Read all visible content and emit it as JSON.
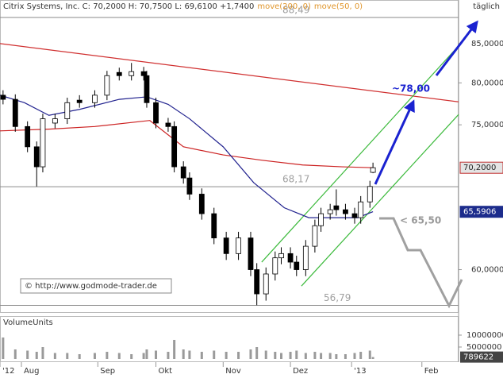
{
  "chart_data": {
    "type": "candlestick",
    "title": "Citrix Systems, Inc. C: 70,2000 H: 70,7500 L: 69,6100 +1,7400",
    "indicator_labels": [
      "move(200, 0)",
      "move(50, 0)"
    ],
    "indicator_label_color": "#e0962c",
    "period": "täglich",
    "copyright": "© http://www.godmode-trader.de",
    "log_scale": true,
    "xlim": [
      0,
      150
    ],
    "xticks": [
      {
        "value": 0,
        "label": "'12"
      },
      {
        "value": 7,
        "label": "Aug"
      },
      {
        "value": 32,
        "label": "Sep"
      },
      {
        "value": 51,
        "label": "Okt"
      },
      {
        "value": 73,
        "label": "Nov"
      },
      {
        "value": 95,
        "label": "Dez"
      },
      {
        "value": 115,
        "label": "'13"
      },
      {
        "value": 138,
        "label": "Feb"
      }
    ],
    "ylim": [
      56.2,
      90.9
    ],
    "yticks": [
      {
        "value": 60,
        "label": "60,0000"
      },
      {
        "value": 75,
        "label": "75,0000"
      },
      {
        "value": 80,
        "label": "80,0000"
      },
      {
        "value": 85,
        "label": "85,0000"
      }
    ],
    "x": [
      1,
      5,
      9,
      12,
      14,
      18,
      22,
      26,
      31,
      35,
      39,
      43,
      47,
      48,
      51,
      55,
      57,
      60,
      62,
      66,
      70,
      74,
      78,
      82,
      84,
      87,
      90,
      92,
      95,
      97,
      100,
      103,
      105,
      108,
      110,
      113,
      116,
      118,
      121,
      122
    ],
    "open": [
      78.5,
      78.0,
      74.8,
      72.5,
      70.3,
      75.2,
      75.7,
      77.9,
      77.6,
      78.5,
      81.3,
      80.9,
      81.4,
      80.9,
      77.6,
      75.2,
      74.8,
      70.3,
      69.1,
      67.4,
      65.4,
      63.0,
      61.5,
      63.0,
      60.0,
      57.8,
      59.6,
      61.1,
      61.5,
      60.7,
      60.0,
      62.2,
      64.2,
      65.4,
      66.2,
      65.8,
      65.4,
      65.0,
      66.6,
      69.7
    ],
    "high": [
      79.1,
      78.6,
      75.4,
      73.1,
      76.3,
      76.3,
      78.2,
      78.5,
      79.1,
      81.5,
      81.9,
      82.5,
      82.0,
      81.5,
      78.2,
      75.8,
      75.4,
      70.9,
      69.7,
      68.0,
      66.0,
      63.6,
      63.6,
      63.6,
      60.6,
      60.2,
      61.7,
      62.1,
      62.1,
      61.3,
      62.8,
      64.8,
      66.0,
      66.4,
      67.9,
      66.4,
      66.0,
      67.2,
      68.8,
      70.75
    ],
    "low": [
      77.4,
      74.2,
      71.9,
      68.2,
      69.7,
      74.6,
      75.1,
      77.0,
      77.0,
      77.9,
      80.3,
      80.3,
      80.3,
      77.0,
      74.6,
      74.2,
      69.7,
      68.5,
      66.8,
      64.8,
      62.4,
      60.9,
      60.9,
      59.4,
      56.8,
      57.2,
      59.0,
      60.5,
      60.1,
      59.4,
      59.4,
      61.6,
      63.6,
      64.8,
      65.2,
      64.8,
      64.4,
      64.4,
      66.0,
      69.61
    ],
    "close": [
      78.0,
      74.8,
      72.5,
      70.3,
      75.7,
      75.7,
      77.6,
      77.6,
      78.5,
      80.9,
      80.9,
      81.4,
      80.9,
      77.6,
      75.2,
      74.8,
      70.3,
      69.1,
      67.4,
      65.4,
      63.0,
      61.5,
      63.0,
      60.0,
      57.8,
      59.6,
      61.1,
      61.5,
      60.7,
      60.0,
      62.2,
      64.2,
      65.4,
      65.8,
      65.8,
      65.4,
      65.0,
      66.6,
      68.2,
      70.2
    ],
    "moving_averages": [
      {
        "name": "move(200, 0)",
        "color": "#cc2222",
        "x": [
          0,
          16,
          31,
          49,
          60,
          73,
          86,
          99,
          112,
          122
        ],
        "values": [
          74.3,
          74.5,
          74.8,
          75.5,
          72.5,
          71.6,
          71.0,
          70.5,
          70.3,
          70.2
        ]
      },
      {
        "name": "move(50, 0)",
        "color": "#22238f",
        "x": [
          0,
          8,
          16,
          26,
          39,
          48,
          55,
          62,
          73,
          83,
          93,
          101,
          109,
          117,
          122
        ],
        "values": [
          78.5,
          77.6,
          76.1,
          76.8,
          78.0,
          78.3,
          77.4,
          75.7,
          72.5,
          68.6,
          66.0,
          65.0,
          65.0,
          65.0,
          65.6
        ]
      }
    ],
    "trendlines": [
      {
        "color": "#d03030",
        "x": [
          0,
          150
        ],
        "values": [
          85.0,
          77.7
        ]
      },
      {
        "color": "#3cba3c",
        "x": [
          85.6,
          150
        ],
        "values": [
          60.7,
          84.7
        ]
      },
      {
        "color": "#3cba3c",
        "x": [
          98.6,
          150
        ],
        "values": [
          58.5,
          76.2
        ]
      }
    ],
    "levels": [
      {
        "value": 88.49,
        "label": "88,49"
      },
      {
        "value": 68.17,
        "label": "68,17"
      },
      {
        "value": 56.79,
        "label": "56,79"
      }
    ],
    "annotations": [
      "~78,00",
      "< 65,50"
    ],
    "price_tags": [
      {
        "value": 70.2,
        "label": "70,2000",
        "color": "#e4e4e4"
      },
      {
        "value": 65.5906,
        "label": "65,5906",
        "color": "#1c2c8c"
      }
    ],
    "volume": {
      "label": "VolumeUnits",
      "color": "#9a9a9a",
      "ylim": [
        0,
        17000000
      ],
      "yticks": [
        5000000,
        10000000
      ],
      "values": [
        9000000,
        4000000,
        3500000,
        3000000,
        5000000,
        2500000,
        2500000,
        2000000,
        2500000,
        3000000,
        2500000,
        2000000,
        2500000,
        4000000,
        3500000,
        3000000,
        8000000,
        4000000,
        3500000,
        3000000,
        3500000,
        3000000,
        3000000,
        4000000,
        5000000,
        3500000,
        3000000,
        2500000,
        3000000,
        3500000,
        2500000,
        3000000,
        2500000,
        2500000,
        2000000,
        2000000,
        2500000,
        3000000,
        3500000,
        789622
      ]
    }
  }
}
